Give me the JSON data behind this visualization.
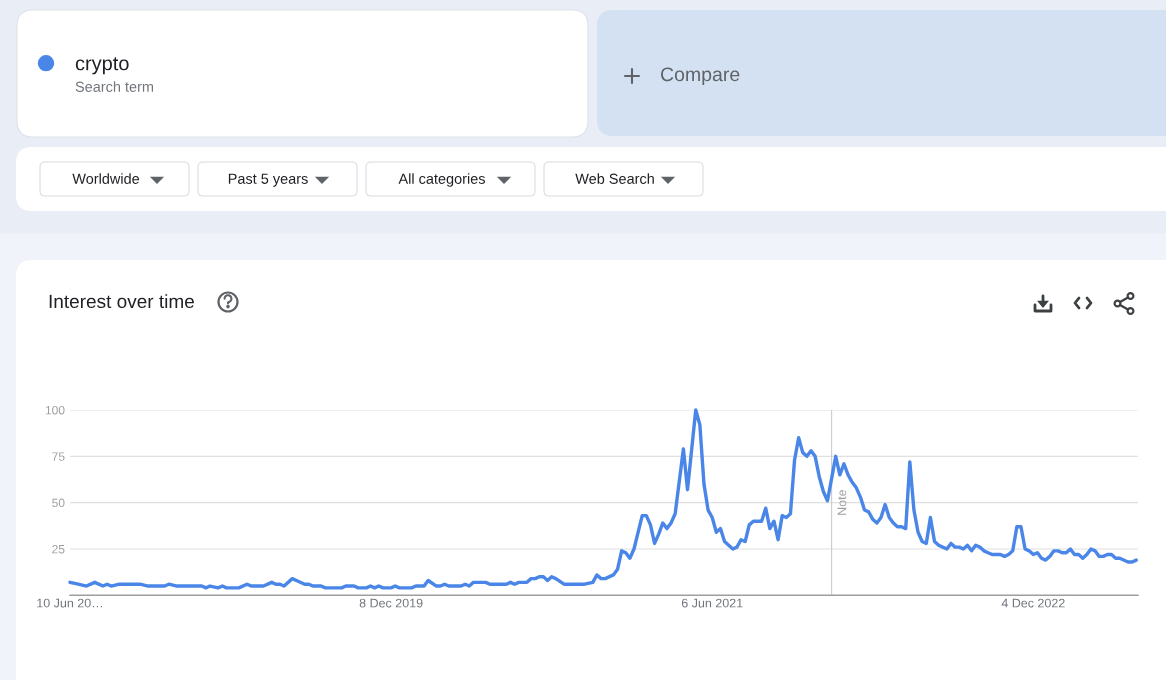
{
  "chart_data": {
    "type": "line",
    "title": "Interest over time",
    "annotations": [
      "Search term",
      "Compare",
      "Worldwide",
      "Past 5 years",
      "All categories",
      "Web Search"
    ],
    "x": [
      "2018-06-10",
      "2018-06-24",
      "2018-07-08",
      "2018-07-22",
      "2018-08-05",
      "2018-08-12",
      "2018-08-19",
      "2018-09-02",
      "2018-10-07",
      "2018-10-21",
      "2018-11-18",
      "2018-11-25",
      "2018-12-09",
      "2019-01-20",
      "2019-01-27",
      "2019-02-03",
      "2019-02-17",
      "2019-02-24",
      "2019-03-03",
      "2019-03-24",
      "2019-04-07",
      "2019-04-14",
      "2019-05-05",
      "2019-05-19",
      "2019-05-26",
      "2019-06-02",
      "2019-06-09",
      "2019-06-23",
      "2019-06-30",
      "2019-07-14",
      "2019-07-21",
      "2019-07-28",
      "2019-08-11",
      "2019-08-18",
      "2019-09-15",
      "2019-09-22",
      "2019-10-06",
      "2019-10-13",
      "2019-10-27",
      "2019-11-03",
      "2019-11-10",
      "2019-11-17",
      "2019-11-24",
      "2019-12-08",
      "2019-12-15",
      "2019-12-22",
      "2020-01-12",
      "2020-01-19",
      "2020-02-02",
      "2020-02-09",
      "2020-02-23",
      "2020-03-01",
      "2020-03-08",
      "2020-03-15",
      "2020-04-05",
      "2020-04-12",
      "2020-04-19",
      "2020-04-26",
      "2020-05-17",
      "2020-05-24",
      "2020-06-21",
      "2020-06-28",
      "2020-07-05",
      "2020-07-12",
      "2020-07-26",
      "2020-08-02",
      "2020-08-09",
      "2020-08-16",
      "2020-08-23",
      "2020-08-30",
      "2020-09-06",
      "2020-09-13",
      "2020-09-27",
      "2020-11-01",
      "2020-11-15",
      "2020-11-22",
      "2020-11-29",
      "2020-12-06",
      "2020-12-20",
      "2020-12-27",
      "2021-01-03",
      "2021-01-10",
      "2021-01-17",
      "2021-01-24",
      "2021-02-07",
      "2021-02-14",
      "2021-02-21",
      "2021-02-28",
      "2021-03-07",
      "2021-03-14",
      "2021-03-21",
      "2021-03-28",
      "2021-04-04",
      "2021-04-18",
      "2021-04-25",
      "2021-05-09",
      "2021-05-16",
      "2021-05-23",
      "2021-05-30",
      "2021-06-06",
      "2021-06-13",
      "2021-06-20",
      "2021-06-27",
      "2021-07-11",
      "2021-07-18",
      "2021-07-25",
      "2021-08-01",
      "2021-08-08",
      "2021-08-15",
      "2021-08-29",
      "2021-09-05",
      "2021-09-12",
      "2021-09-19",
      "2021-09-26",
      "2021-10-03",
      "2021-10-10",
      "2021-10-17",
      "2021-10-24",
      "2021-10-31",
      "2021-11-07",
      "2021-11-14",
      "2021-11-21",
      "2021-11-28",
      "2021-12-05",
      "2021-12-12",
      "2021-12-19",
      "2022-01-02",
      "2022-01-09",
      "2022-01-16",
      "2022-01-23",
      "2022-01-30",
      "2022-02-06",
      "2022-02-13",
      "2022-02-20",
      "2022-02-27",
      "2022-03-06",
      "2022-03-13",
      "2022-03-20",
      "2022-03-27",
      "2022-04-03",
      "2022-04-10",
      "2022-04-17",
      "2022-04-24",
      "2022-05-01",
      "2022-05-08",
      "2022-05-15",
      "2022-05-22",
      "2022-05-29",
      "2022-06-05",
      "2022-06-12",
      "2022-06-19",
      "2022-06-26",
      "2022-07-03",
      "2022-07-10",
      "2022-07-17",
      "2022-07-24",
      "2022-07-31",
      "2022-08-07",
      "2022-08-14",
      "2022-08-21",
      "2022-08-28",
      "2022-09-04",
      "2022-09-11",
      "2022-09-18",
      "2022-09-25",
      "2022-10-09",
      "2022-10-16",
      "2022-10-23",
      "2022-10-30",
      "2022-11-06",
      "2022-11-13",
      "2022-11-20",
      "2022-11-27",
      "2022-12-04",
      "2022-12-11",
      "2022-12-18",
      "2022-12-25",
      "2023-01-01",
      "2023-01-08",
      "2023-01-15",
      "2023-01-22",
      "2023-01-29",
      "2023-02-05",
      "2023-02-12",
      "2023-02-19",
      "2023-02-26",
      "2023-03-05",
      "2023-03-12",
      "2023-03-19",
      "2023-03-26",
      "2023-04-02",
      "2023-04-09",
      "2023-04-16",
      "2023-04-23",
      "2023-04-30",
      "2023-05-14",
      "2023-05-21",
      "2023-05-28"
    ],
    "series": [
      {
        "name": "crypto",
        "color": "#4a86e8",
        "values": [
          7,
          6,
          5,
          7,
          5,
          6,
          5,
          6,
          6,
          5,
          5,
          6,
          5,
          5,
          4,
          5,
          4,
          5,
          4,
          4,
          6,
          5,
          5,
          7,
          6,
          6,
          5,
          9,
          8,
          6,
          6,
          5,
          5,
          4,
          4,
          5,
          5,
          4,
          4,
          5,
          4,
          5,
          4,
          4,
          5,
          4,
          4,
          5,
          5,
          8,
          5,
          5,
          6,
          5,
          5,
          6,
          5,
          7,
          7,
          6,
          6,
          7,
          6,
          7,
          7,
          9,
          9,
          10,
          10,
          8,
          10,
          9,
          6,
          6,
          7,
          11,
          9,
          9,
          11,
          14,
          24,
          23,
          20,
          25,
          43,
          43,
          38,
          28,
          33,
          39,
          36,
          39,
          44,
          79,
          57,
          100,
          92,
          60,
          46,
          42,
          34,
          36,
          29,
          25,
          26,
          30,
          29,
          38,
          40,
          40,
          47,
          36,
          40,
          30,
          43,
          42,
          44,
          73,
          85,
          77,
          75,
          78,
          75,
          64,
          56,
          51,
          75,
          65,
          71,
          65,
          61,
          58,
          53,
          46,
          45,
          41,
          39,
          42,
          49,
          42,
          39,
          37,
          37,
          36,
          72,
          46,
          34,
          29,
          28,
          42,
          29,
          27,
          26,
          25,
          28,
          26,
          26,
          25,
          27,
          24,
          27,
          26,
          24,
          23,
          22,
          22,
          21,
          22,
          24,
          37,
          37,
          25,
          24,
          22,
          23,
          20,
          19,
          21,
          24,
          24,
          23,
          23,
          25,
          22,
          22,
          20,
          22,
          25,
          24,
          21,
          21,
          22,
          22,
          20,
          20,
          18,
          18,
          19
        ]
      }
    ],
    "xlim": [
      "2018-06-10",
      "2023-05-31"
    ],
    "xticks": [
      {
        "value": "2018-06-10",
        "label": "10 Jun 20…"
      },
      {
        "value": "2019-12-08",
        "label": "8 Dec 2019"
      },
      {
        "value": "2021-06-06",
        "label": "6 Jun 2021"
      },
      {
        "value": "2022-12-04",
        "label": "4 Dec 2022"
      }
    ],
    "ylim": [
      0,
      100
    ],
    "yticks": [
      25,
      50,
      75,
      100
    ],
    "ref_lines": [
      {
        "axis": "x",
        "value": "2021-12-26",
        "label": "Note",
        "color": "#cccccc"
      }
    ],
    "grid": "y",
    "legend": "top left"
  }
}
